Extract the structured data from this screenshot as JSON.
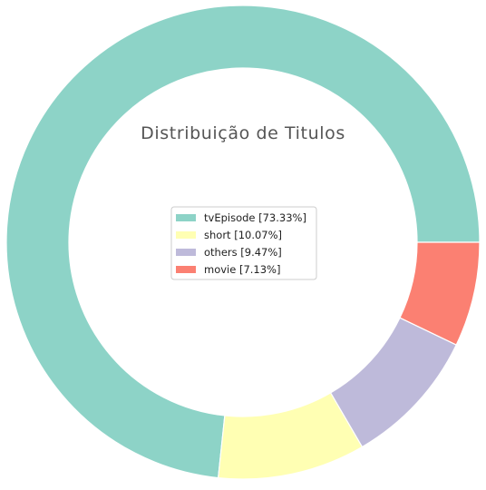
{
  "chart_data": {
    "type": "pie",
    "variant": "donut",
    "title": "Distribuição de Titulos",
    "legend_position": "center",
    "start_angle_deg": 0,
    "direction": "counterclockwise",
    "slices": [
      {
        "label": "tvEpisode",
        "value": 73.33,
        "legend_text": "tvEpisode [73.33%]",
        "color": "#8dd3c7"
      },
      {
        "label": "short",
        "value": 10.07,
        "legend_text": "short [10.07%]",
        "color": "#ffffb3"
      },
      {
        "label": "others",
        "value": 9.47,
        "legend_text": "others [9.47%]",
        "color": "#bebada"
      },
      {
        "label": "movie",
        "value": 7.13,
        "legend_text": "movie [7.13%]",
        "color": "#fb8072"
      }
    ]
  }
}
